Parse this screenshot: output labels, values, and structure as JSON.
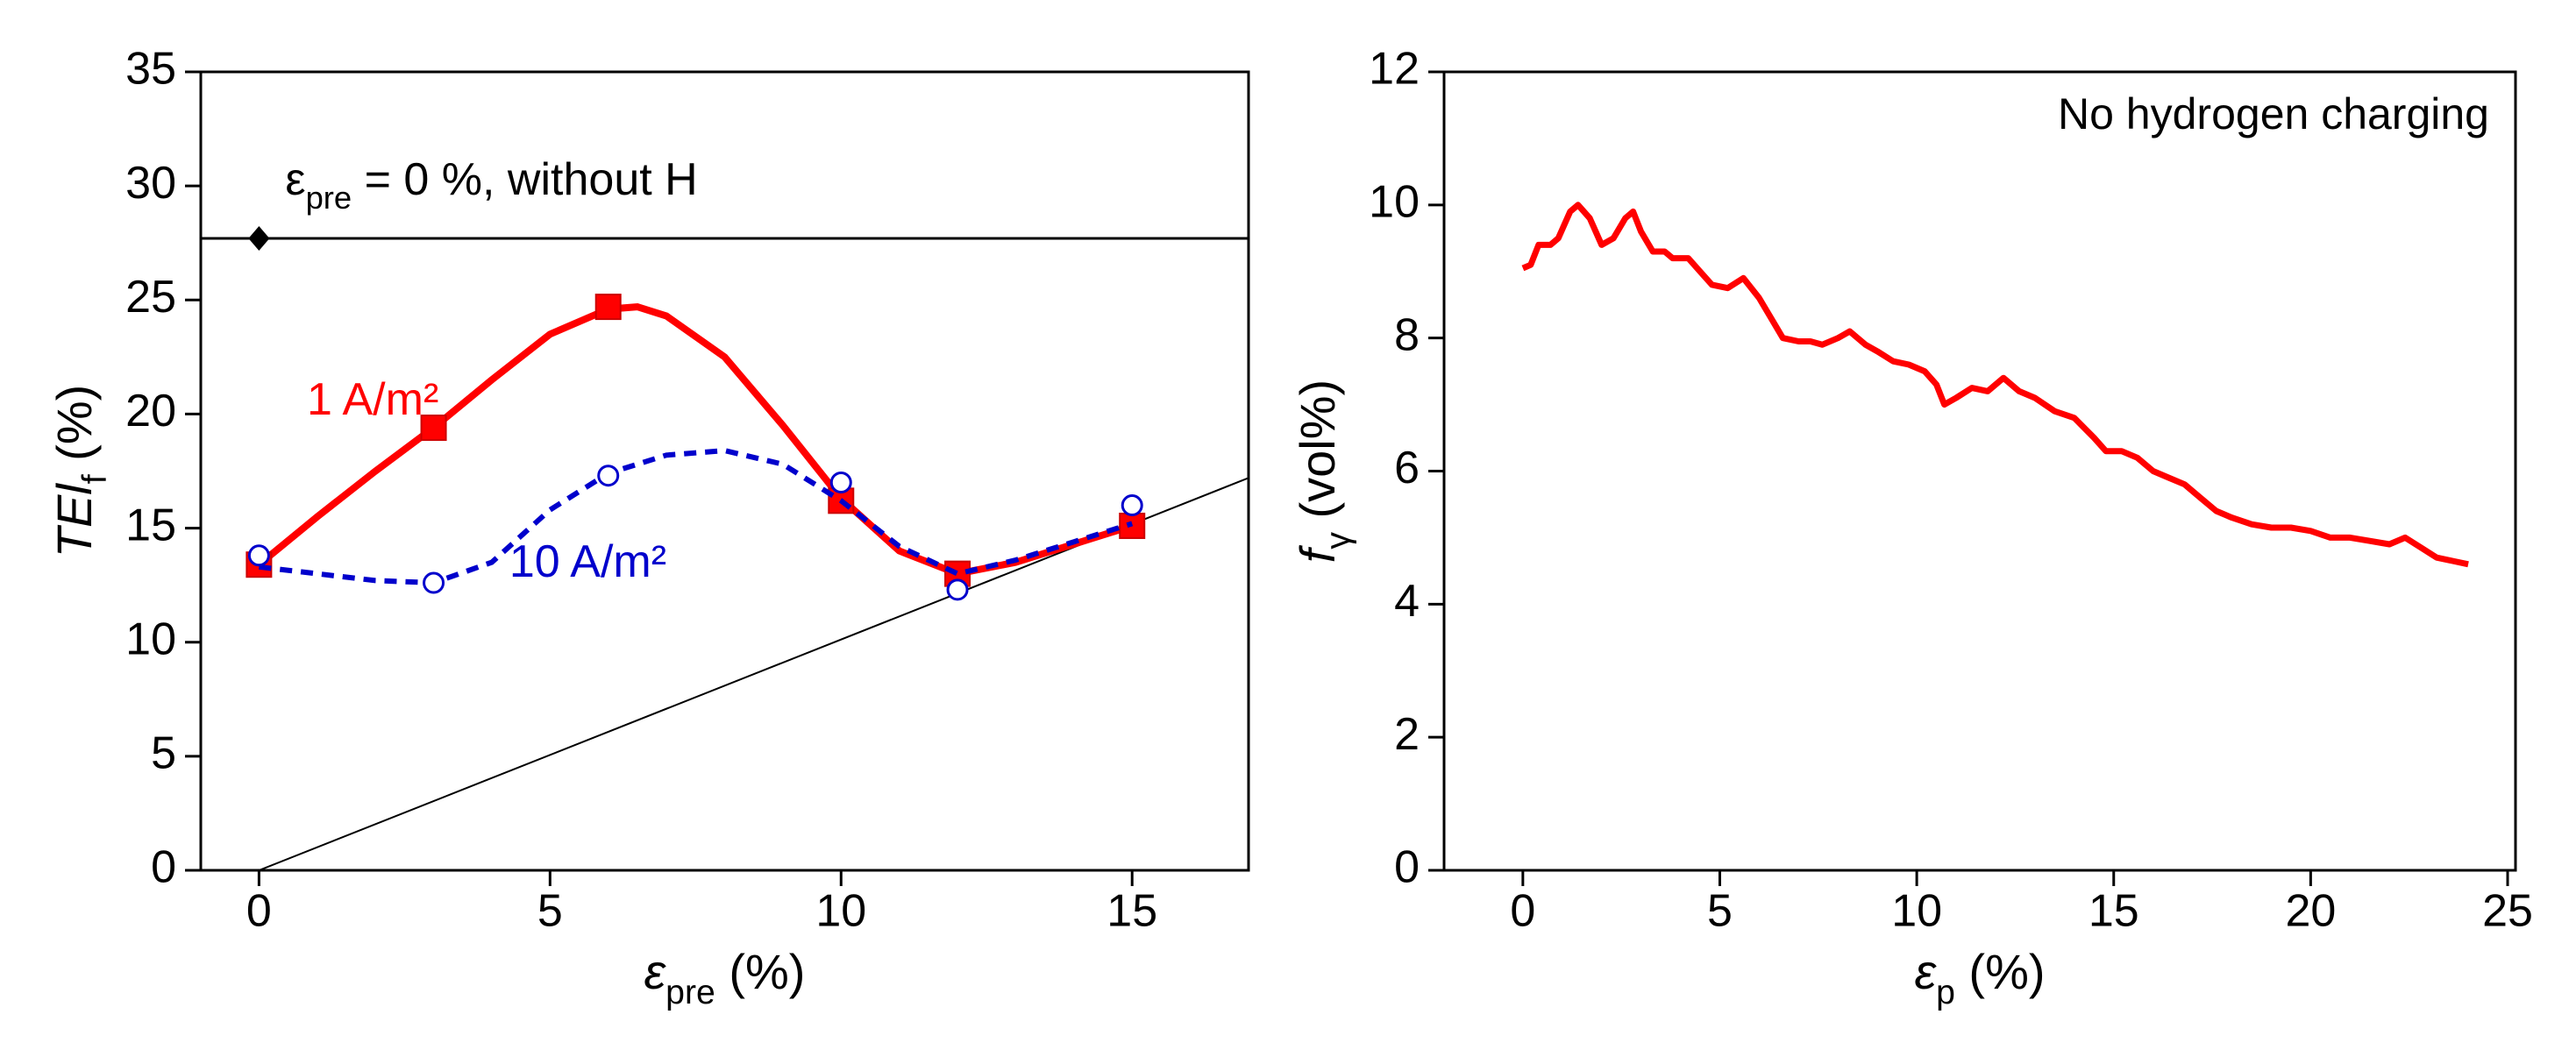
{
  "chart_data": [
    {
      "type": "line",
      "xlabel": [
        "ε",
        "pre",
        " (%)"
      ],
      "ylabel": [
        "TEl",
        "f",
        " (%)"
      ],
      "xlim": [
        -1,
        17
      ],
      "ylim": [
        0,
        35
      ],
      "xticks": [
        0,
        5,
        10,
        15
      ],
      "yticks": [
        0,
        5,
        10,
        15,
        20,
        25,
        30,
        35
      ],
      "reference": {
        "label": [
          "ε",
          "pre",
          " = 0 %, without H"
        ],
        "x": 0,
        "value": 27.7,
        "color": "#000000"
      },
      "lines": [
        {
          "x": [
            0,
            17
          ],
          "values": [
            0,
            17.2
          ],
          "color": "#000000"
        }
      ],
      "series": [
        {
          "name": "1 A/m²",
          "color": "#ff0000",
          "marker": "square",
          "dashed": false,
          "x": [
            0,
            3,
            6,
            10,
            12,
            15
          ],
          "values": [
            13.4,
            19.4,
            24.7,
            16.2,
            13,
            15.1
          ],
          "fit": {
            "x": [
              0,
              1,
              2,
              3,
              4,
              5,
              6,
              6.5,
              7,
              8,
              9,
              10,
              11,
              12,
              13,
              14,
              15
            ],
            "values": [
              13.4,
              15.5,
              17.5,
              19.4,
              21.5,
              23.5,
              24.6,
              24.7,
              24.3,
              22.5,
              19.5,
              16.3,
              14,
              13,
              13.5,
              14.3,
              15.1
            ]
          }
        },
        {
          "name": "10 A/m²",
          "color": "#0000cc",
          "marker": "circle",
          "dashed": true,
          "x": [
            0,
            3,
            6,
            10,
            12,
            15
          ],
          "values": [
            13.8,
            12.6,
            17.3,
            17,
            12.3,
            16
          ],
          "fit": {
            "x": [
              0,
              1,
              2,
              3,
              4,
              5,
              6,
              7,
              8,
              9,
              10,
              11,
              12,
              13,
              14,
              15
            ],
            "values": [
              13.3,
              13,
              12.7,
              12.6,
              13.5,
              15.8,
              17.4,
              18.2,
              18.4,
              17.8,
              16.2,
              14.2,
              13,
              13.6,
              14.4,
              15.2
            ]
          }
        }
      ]
    },
    {
      "type": "line",
      "annotation": "No hydrogen charging",
      "xlabel": [
        "ε",
        "p",
        " (%)"
      ],
      "ylabel": [
        "f",
        "γ",
        " (vol%)"
      ],
      "xlim": [
        -2,
        25.2
      ],
      "ylim": [
        0,
        12
      ],
      "xticks": [
        0,
        5,
        10,
        15,
        20,
        25
      ],
      "yticks": [
        0,
        2,
        4,
        6,
        8,
        10,
        12
      ],
      "series": [
        {
          "color": "#ff0000",
          "x": [
            0,
            0.2,
            0.4,
            0.7,
            0.9,
            1.2,
            1.4,
            1.7,
            2,
            2.3,
            2.6,
            2.8,
            3,
            3.3,
            3.6,
            3.8,
            4.2,
            4.5,
            4.8,
            5.2,
            5.6,
            6,
            6.3,
            6.6,
            7,
            7.3,
            7.6,
            8,
            8.3,
            8.7,
            9,
            9.4,
            9.8,
            10.2,
            10.5,
            10.7,
            11,
            11.4,
            11.8,
            12.2,
            12.6,
            13,
            13.5,
            14,
            14.5,
            14.8,
            15.2,
            15.6,
            16,
            16.4,
            16.8,
            17.2,
            17.6,
            18,
            18.5,
            19,
            19.5,
            20,
            20.5,
            21,
            21.5,
            22,
            22.4,
            22.8,
            23.2,
            23.6,
            24
          ],
          "values": [
            9.05,
            9.1,
            9.4,
            9.4,
            9.5,
            9.9,
            10,
            9.8,
            9.4,
            9.5,
            9.8,
            9.9,
            9.6,
            9.3,
            9.3,
            9.2,
            9.2,
            9,
            8.8,
            8.75,
            8.9,
            8.6,
            8.3,
            8,
            7.95,
            7.95,
            7.9,
            8,
            8.1,
            7.9,
            7.8,
            7.65,
            7.6,
            7.5,
            7.3,
            7,
            7.1,
            7.25,
            7.2,
            7.4,
            7.2,
            7.1,
            6.9,
            6.8,
            6.5,
            6.3,
            6.3,
            6.2,
            6,
            5.9,
            5.8,
            5.6,
            5.4,
            5.3,
            5.2,
            5.15,
            5.15,
            5.1,
            5,
            5,
            4.95,
            4.9,
            5,
            4.85,
            4.7,
            4.65,
            4.6
          ]
        }
      ]
    }
  ]
}
